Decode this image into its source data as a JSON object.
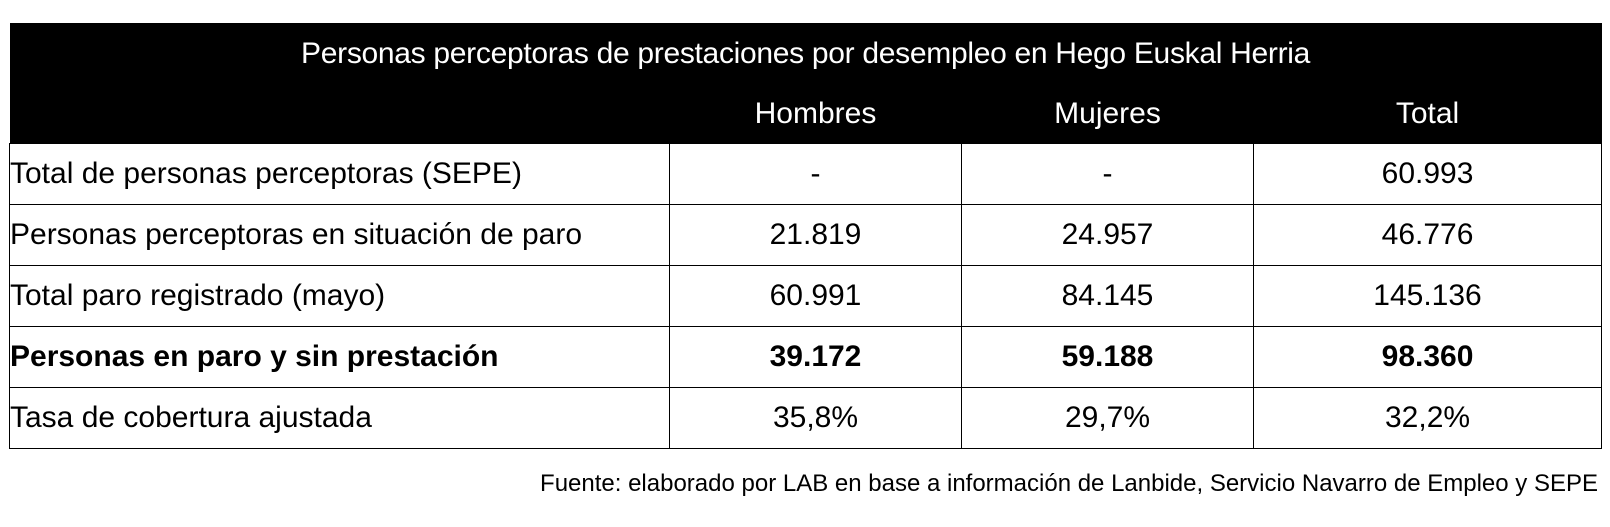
{
  "table": {
    "title": "Personas perceptoras de prestaciones por desempleo en Hego Euskal Herria",
    "columns": [
      "Hombres",
      "Mujeres",
      "Total"
    ],
    "rows": [
      {
        "label": "Total de personas perceptoras (SEPE)",
        "values": [
          "-",
          "-",
          "60.993"
        ],
        "bold": false
      },
      {
        "label": "Personas perceptoras en situación de paro",
        "values": [
          "21.819",
          "24.957",
          "46.776"
        ],
        "bold": false
      },
      {
        "label": "Total paro registrado (mayo)",
        "values": [
          "60.991",
          "84.145",
          "145.136"
        ],
        "bold": false
      },
      {
        "label": "Personas en paro y sin prestación",
        "values": [
          "39.172",
          "59.188",
          "98.360"
        ],
        "bold": true
      },
      {
        "label": "Tasa de cobertura ajustada",
        "values": [
          "35,8%",
          "29,7%",
          "32,2%"
        ],
        "bold": false
      }
    ],
    "header_bg": "#000000",
    "header_fg": "#ffffff"
  },
  "source": "Fuente: elaborado por LAB en base a información de Lanbide, Servicio Navarro de Empleo y SEPE"
}
